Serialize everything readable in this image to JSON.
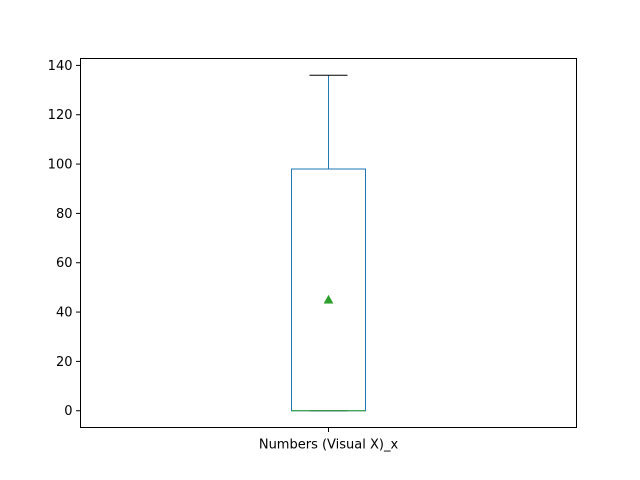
{
  "chart_data": {
    "type": "box",
    "title": "",
    "xlabel": "",
    "ylabel": "",
    "categories": [
      "Numbers (Visual X)_x"
    ],
    "boxes": [
      {
        "category": "Numbers (Visual X)_x",
        "whisker_low": 0,
        "q1": 0,
        "median": 0,
        "q3": 98,
        "whisker_high": 136,
        "mean": 45
      }
    ],
    "ylim": [
      -6.8,
      142.8
    ],
    "yticks": [
      0,
      20,
      40,
      60,
      80,
      100,
      120,
      140
    ],
    "grid": false,
    "colors": {
      "box": "#1f77b4",
      "median": "#2ca02c",
      "mean_marker": "#2ca02c",
      "cap": "#000000"
    }
  }
}
